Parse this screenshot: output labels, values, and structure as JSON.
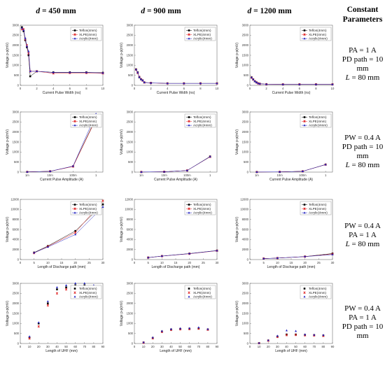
{
  "column_headers": [
    {
      "var": "d",
      "rest": " = 450 mm"
    },
    {
      "var": "d",
      "rest": " = 900 mm"
    },
    {
      "var": "d",
      "rest": " = 1200 mm"
    }
  ],
  "params_header": [
    "Constant",
    "Parameters"
  ],
  "param_rows": [
    [
      {
        "t": "PA = 1 A"
      },
      {
        "t": "PD path = 10"
      },
      {
        "t": "mm"
      },
      {
        "var": "L",
        "t": " = 80 mm"
      }
    ],
    [
      {
        "t": "PW = 0.4 A"
      },
      {
        "t": "PD path = 10"
      },
      {
        "t": "mm"
      },
      {
        "var": "L",
        "t": " = 80 mm"
      }
    ],
    [
      {
        "t": "PW = 0.4 A"
      },
      {
        "t": "PA = 1 A"
      },
      {
        "var": "L",
        "t": " = 80 mm"
      }
    ],
    [
      {
        "t": "PW = 0.4 A"
      },
      {
        "t": "PA = 1 A"
      },
      {
        "t": "PD path = 10"
      },
      {
        "t": "mm"
      }
    ]
  ],
  "colors": {
    "teflon": "#000000",
    "xlpe": "#e02020",
    "acrylic": "#2020c0"
  },
  "chart_data": [
    {
      "type": "line",
      "row": 0,
      "col": 0,
      "xlabel": "Current Pulse Width (ns)",
      "ylabel": "Voltage p-p(mV)",
      "xlim": [
        0,
        10
      ],
      "ylim": [
        0,
        3000
      ],
      "xticks": [
        "0",
        "2",
        "4",
        "6",
        "8",
        "10"
      ],
      "yticks": [
        "0",
        "500",
        "1000",
        "1500",
        "2000",
        "2500",
        "3000"
      ],
      "x": [
        0.2,
        0.4,
        0.6,
        0.8,
        1,
        1.2,
        2,
        4,
        6,
        8,
        10
      ],
      "series": [
        {
          "name": "Teflon(4mm)",
          "values": [
            2900,
            2700,
            2250,
            1900,
            1500,
            450,
            700,
            650,
            650,
            650,
            630
          ]
        },
        {
          "name": "XLPE(4mm)",
          "values": [
            2800,
            2800,
            2300,
            2000,
            1600,
            700,
            700,
            600,
            620,
            620,
            600
          ]
        },
        {
          "name": "Acrylic(4mm)",
          "values": [
            2850,
            2750,
            2350,
            1950,
            1700,
            700,
            700,
            640,
            640,
            640,
            620
          ]
        }
      ]
    },
    {
      "type": "line",
      "row": 0,
      "col": 1,
      "xlabel": "Current Pulse Width (ns)",
      "ylabel": "Voltage p-p(mV)",
      "xlim": [
        0,
        10
      ],
      "ylim": [
        0,
        3000
      ],
      "xticks": [
        "0",
        "2",
        "4",
        "6",
        "8",
        "10"
      ],
      "yticks": [
        "0",
        "500",
        "1000",
        "1500",
        "2000",
        "2500",
        "3000"
      ],
      "x": [
        0.2,
        0.4,
        0.6,
        0.8,
        1,
        1.2,
        2,
        4,
        6,
        8,
        10
      ],
      "series": [
        {
          "name": "Teflon(4mm)",
          "values": [
            800,
            650,
            400,
            300,
            250,
            150,
            120,
            100,
            100,
            100,
            100
          ]
        },
        {
          "name": "XLPE(4mm)",
          "values": [
            780,
            620,
            420,
            310,
            240,
            140,
            115,
            95,
            95,
            95,
            95
          ]
        },
        {
          "name": "Acrylic(4mm)",
          "values": [
            790,
            640,
            410,
            305,
            245,
            145,
            118,
            98,
            98,
            98,
            98
          ]
        }
      ]
    },
    {
      "type": "line",
      "row": 0,
      "col": 2,
      "xlabel": "Current Pulse Width (ns)",
      "ylabel": "Voltage p-p(mV)",
      "xlim": [
        0,
        10
      ],
      "ylim": [
        0,
        3000
      ],
      "xticks": [
        "0",
        "2",
        "4",
        "6",
        "8",
        "10"
      ],
      "yticks": [
        "0",
        "500",
        "1000",
        "1500",
        "2000",
        "2500",
        "3000"
      ],
      "x": [
        0.2,
        0.4,
        0.6,
        0.8,
        1,
        1.2,
        2,
        4,
        6,
        8,
        10
      ],
      "series": [
        {
          "name": "Teflon(4mm)",
          "values": [
            400,
            300,
            200,
            150,
            100,
            80,
            60,
            50,
            50,
            50,
            50
          ]
        },
        {
          "name": "XLPE(4mm)",
          "values": [
            380,
            290,
            210,
            140,
            95,
            75,
            55,
            48,
            48,
            48,
            48
          ]
        },
        {
          "name": "Acrylic(4mm)",
          "values": [
            390,
            295,
            205,
            145,
            98,
            78,
            58,
            49,
            49,
            49,
            49
          ]
        }
      ]
    },
    {
      "type": "line",
      "xscale": "log",
      "row": 1,
      "col": 0,
      "xlabel": "Current Pulse Amplitude (A)",
      "ylabel": "Voltage p-p(mV)",
      "xlim": [
        0.0005,
        2
      ],
      "ylim": [
        0,
        3000
      ],
      "xticks": [
        "1m",
        "10m",
        "100m",
        "1"
      ],
      "xtick_vals": [
        0.001,
        0.01,
        0.1,
        1
      ],
      "yticks": [
        "0",
        "500",
        "1000",
        "1500",
        "2000",
        "2500",
        "3000"
      ],
      "x": [
        0.001,
        0.01,
        0.1,
        1
      ],
      "series": [
        {
          "name": "Teflon(4mm)",
          "values": [
            10,
            40,
            290,
            2700
          ]
        },
        {
          "name": "XLPE(4mm)",
          "values": [
            10,
            40,
            280,
            2650
          ]
        },
        {
          "name": "Acrylic(4mm)",
          "values": [
            10,
            40,
            300,
            2900
          ]
        }
      ]
    },
    {
      "type": "line",
      "xscale": "log",
      "row": 1,
      "col": 1,
      "xlabel": "Current Pulse Amplitude (A)",
      "ylabel": "Voltage p-p(mV)",
      "xlim": [
        0.0005,
        2
      ],
      "ylim": [
        0,
        3000
      ],
      "xticks": [
        "1m",
        "10m",
        "100m",
        "1"
      ],
      "xtick_vals": [
        0.001,
        0.01,
        0.1,
        1
      ],
      "yticks": [
        "0",
        "500",
        "1000",
        "1500",
        "2000",
        "2500",
        "3000"
      ],
      "x": [
        0.001,
        0.01,
        0.1,
        1
      ],
      "series": [
        {
          "name": "Teflon(4mm)",
          "values": [
            5,
            15,
            80,
            780
          ]
        },
        {
          "name": "XLPE(4mm)",
          "values": [
            5,
            15,
            80,
            760
          ]
        },
        {
          "name": "Acrylic(4mm)",
          "values": [
            5,
            15,
            80,
            770
          ]
        }
      ]
    },
    {
      "type": "line",
      "xscale": "log",
      "row": 1,
      "col": 2,
      "xlabel": "Current Pulse Amplitude (A)",
      "ylabel": "Voltage p-p(mV)",
      "xlim": [
        0.0005,
        2
      ],
      "ylim": [
        0,
        3000
      ],
      "xticks": [
        "1m",
        "10m",
        "100m",
        "1"
      ],
      "xtick_vals": [
        0.001,
        0.01,
        0.1,
        1
      ],
      "yticks": [
        "0",
        "500",
        "1000",
        "1500",
        "2000",
        "2500",
        "3000"
      ],
      "x": [
        0.001,
        0.01,
        0.1,
        1
      ],
      "series": [
        {
          "name": "Teflon(4mm)",
          "values": [
            3,
            10,
            40,
            380
          ]
        },
        {
          "name": "XLPE(4mm)",
          "values": [
            3,
            10,
            40,
            370
          ]
        },
        {
          "name": "Acrylic(4mm)",
          "values": [
            3,
            10,
            40,
            375
          ]
        }
      ]
    },
    {
      "type": "line",
      "row": 2,
      "col": 0,
      "xlabel": "Length of Discharge path (mm)",
      "ylabel": "Voltage p-p(mV)",
      "xlim": [
        0,
        30
      ],
      "ylim": [
        0,
        12000
      ],
      "xticks": [
        "0",
        "5",
        "10",
        "15",
        "20",
        "25",
        "30"
      ],
      "yticks": [
        "0",
        "2000",
        "4000",
        "6000",
        "8000",
        "10000",
        "12000"
      ],
      "x": [
        5,
        10,
        20,
        30
      ],
      "series": [
        {
          "name": "Teflon(4mm)",
          "values": [
            1400,
            2700,
            5700,
            11000
          ]
        },
        {
          "name": "XLPE(4mm)",
          "values": [
            1300,
            2600,
            5400,
            11700
          ]
        },
        {
          "name": "Acrylic(4mm)",
          "values": [
            1350,
            2500,
            5000,
            10500
          ]
        }
      ]
    },
    {
      "type": "line",
      "row": 2,
      "col": 1,
      "xlabel": "Length of Discharge path (mm)",
      "ylabel": "Voltage p-p(mV)",
      "xlim": [
        0,
        30
      ],
      "ylim": [
        0,
        12000
      ],
      "xticks": [
        "0",
        "5",
        "10",
        "15",
        "20",
        "25",
        "30"
      ],
      "yticks": [
        "0",
        "2000",
        "4000",
        "6000",
        "8000",
        "10000",
        "12000"
      ],
      "x": [
        5,
        10,
        20,
        30
      ],
      "series": [
        {
          "name": "Teflon(4mm)",
          "values": [
            400,
            700,
            1200,
            1800
          ]
        },
        {
          "name": "XLPE(4mm)",
          "values": [
            380,
            680,
            1150,
            1750
          ]
        },
        {
          "name": "Acrylic(4mm)",
          "values": [
            390,
            690,
            1180,
            1780
          ]
        }
      ]
    },
    {
      "type": "line",
      "row": 2,
      "col": 2,
      "xlabel": "Length of Discharge path (mm)",
      "ylabel": "Voltage p-p(mV)",
      "xlim": [
        0,
        30
      ],
      "ylim": [
        0,
        12000
      ],
      "xticks": [
        "0",
        "5",
        "10",
        "15",
        "20",
        "25",
        "30"
      ],
      "yticks": [
        "0",
        "2000",
        "4000",
        "6000",
        "8000",
        "10000",
        "12000"
      ],
      "x": [
        5,
        10,
        20,
        30
      ],
      "series": [
        {
          "name": "Teflon(4mm)",
          "values": [
            200,
            300,
            600,
            1200
          ]
        },
        {
          "name": "XLPE(4mm)",
          "values": [
            190,
            290,
            580,
            1100
          ]
        },
        {
          "name": "Acrylic(4mm)",
          "values": [
            195,
            295,
            590,
            1000
          ]
        }
      ]
    },
    {
      "type": "scatter",
      "row": 3,
      "col": 0,
      "xlabel": "Length of UHF (mm)",
      "ylabel": "Voltage p-p(mV)",
      "xlim": [
        0,
        90
      ],
      "ylim": [
        0,
        3000
      ],
      "xticks": [
        "0",
        "10",
        "20",
        "30",
        "40",
        "50",
        "60",
        "70",
        "80",
        "90"
      ],
      "yticks": [
        "0",
        "500",
        "1000",
        "1500",
        "2000",
        "2500",
        "3000"
      ],
      "x": [
        10,
        20,
        30,
        40,
        50,
        60,
        70,
        80
      ],
      "series": [
        {
          "name": "Teflon(4mm)",
          "values": [
            300,
            1000,
            2000,
            2700,
            2800,
            2900,
            2900,
            2850
          ]
        },
        {
          "name": "XLPE(4mm)",
          "values": [
            250,
            850,
            1900,
            2500,
            2700,
            2750,
            2800,
            2700
          ]
        },
        {
          "name": "Acrylic(4mm)",
          "values": [
            350,
            1050,
            2100,
            2800,
            2900,
            3000,
            3000,
            2900
          ]
        }
      ]
    },
    {
      "type": "scatter",
      "row": 3,
      "col": 1,
      "xlabel": "Length of UHF (mm)",
      "ylabel": "Voltage p-p(mV)",
      "xlim": [
        0,
        90
      ],
      "ylim": [
        0,
        3000
      ],
      "xticks": [
        "0",
        "10",
        "20",
        "30",
        "40",
        "50",
        "60",
        "70",
        "80",
        "90"
      ],
      "yticks": [
        "0",
        "500",
        "1000",
        "1500",
        "2000",
        "2500",
        "3000"
      ],
      "x": [
        10,
        20,
        30,
        40,
        50,
        60,
        70,
        80
      ],
      "series": [
        {
          "name": "Teflon(4mm)",
          "values": [
            50,
            280,
            600,
            700,
            730,
            740,
            760,
            700
          ]
        },
        {
          "name": "XLPE(4mm)",
          "values": [
            40,
            260,
            580,
            680,
            710,
            720,
            740,
            690
          ]
        },
        {
          "name": "Acrylic(4mm)",
          "values": [
            60,
            300,
            620,
            720,
            750,
            760,
            800,
            720
          ]
        }
      ]
    },
    {
      "type": "scatter",
      "row": 3,
      "col": 2,
      "xlabel": "Length of UHF (mm)",
      "ylabel": "Voltage p-p(mV)",
      "xlim": [
        0,
        90
      ],
      "ylim": [
        0,
        3000
      ],
      "xticks": [
        "0",
        "10",
        "20",
        "30",
        "40",
        "50",
        "60",
        "70",
        "80",
        "90"
      ],
      "yticks": [
        "0",
        "500",
        "1000",
        "1500",
        "2000",
        "2500",
        "3000"
      ],
      "x": [
        10,
        20,
        30,
        40,
        50,
        60,
        70,
        80
      ],
      "series": [
        {
          "name": "Teflon(4mm)",
          "values": [
            20,
            150,
            350,
            450,
            450,
            430,
            420,
            400
          ]
        },
        {
          "name": "XLPE(4mm)",
          "values": [
            15,
            140,
            330,
            420,
            430,
            410,
            400,
            380
          ]
        },
        {
          "name": "Acrylic(4mm)",
          "values": [
            25,
            160,
            380,
            650,
            620,
            450,
            430,
            420
          ]
        }
      ]
    }
  ]
}
